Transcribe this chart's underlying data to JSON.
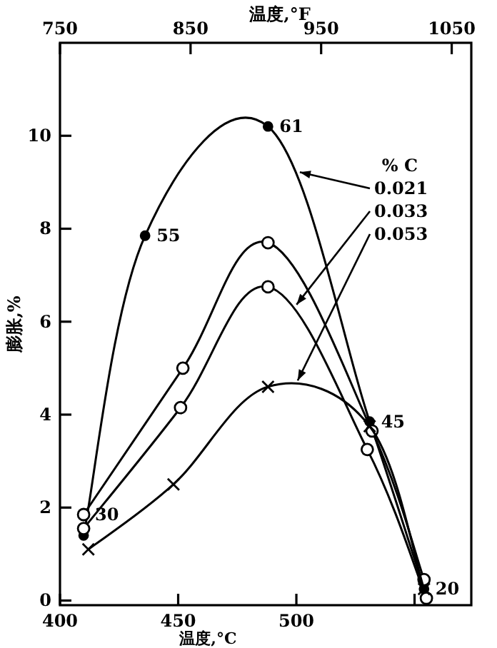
{
  "chart_data": {
    "type": "line",
    "xlabel": "温度,°C",
    "x2label": "温度,°F",
    "ylabel": "膨胀,%",
    "legend_title": "% C",
    "legend": "top right",
    "xlim": [
      400,
      574
    ],
    "xticks": [
      400,
      450,
      500,
      {
        "value": 550,
        "label": null
      }
    ],
    "x2lim": [
      750,
      1065
    ],
    "x2ticks": [
      750,
      850,
      950,
      1050
    ],
    "ylim": [
      -0.1,
      12
    ],
    "yticks": [
      0,
      2,
      4,
      6,
      8,
      10
    ],
    "series": [
      {
        "name": "0.021",
        "color": "#000000",
        "marker": "circle",
        "x": [
          410,
          436,
          488,
          531,
          554
        ],
        "values": [
          1.4,
          7.85,
          10.2,
          3.85,
          0.25
        ]
      },
      {
        "color": "#000000",
        "marker": "circle_open",
        "x": [
          410,
          452,
          488,
          532,
          554
        ],
        "values": [
          1.85,
          5.0,
          7.7,
          3.65,
          0.45
        ]
      },
      {
        "name": "0.033",
        "color": "#000000",
        "marker": "circle_open",
        "x": [
          410,
          451,
          488,
          530,
          555
        ],
        "values": [
          1.55,
          4.15,
          6.75,
          3.25,
          0.05
        ]
      },
      {
        "name": "0.053",
        "color": "#000000",
        "marker": "cross",
        "x": [
          412,
          448,
          488,
          531,
          554
        ],
        "values": [
          1.1,
          2.5,
          4.6,
          3.75,
          0.25
        ]
      }
    ],
    "annotations": [
      {
        "text": "30",
        "x": 410,
        "y": 1.85
      },
      {
        "text": "55",
        "x": 436,
        "y": 7.85
      },
      {
        "text": "61",
        "x": 488,
        "y": 10.2
      },
      {
        "text": "45",
        "x": 531,
        "y": 3.85
      },
      {
        "text": "20",
        "x": 554,
        "y": 0.25
      }
    ]
  }
}
